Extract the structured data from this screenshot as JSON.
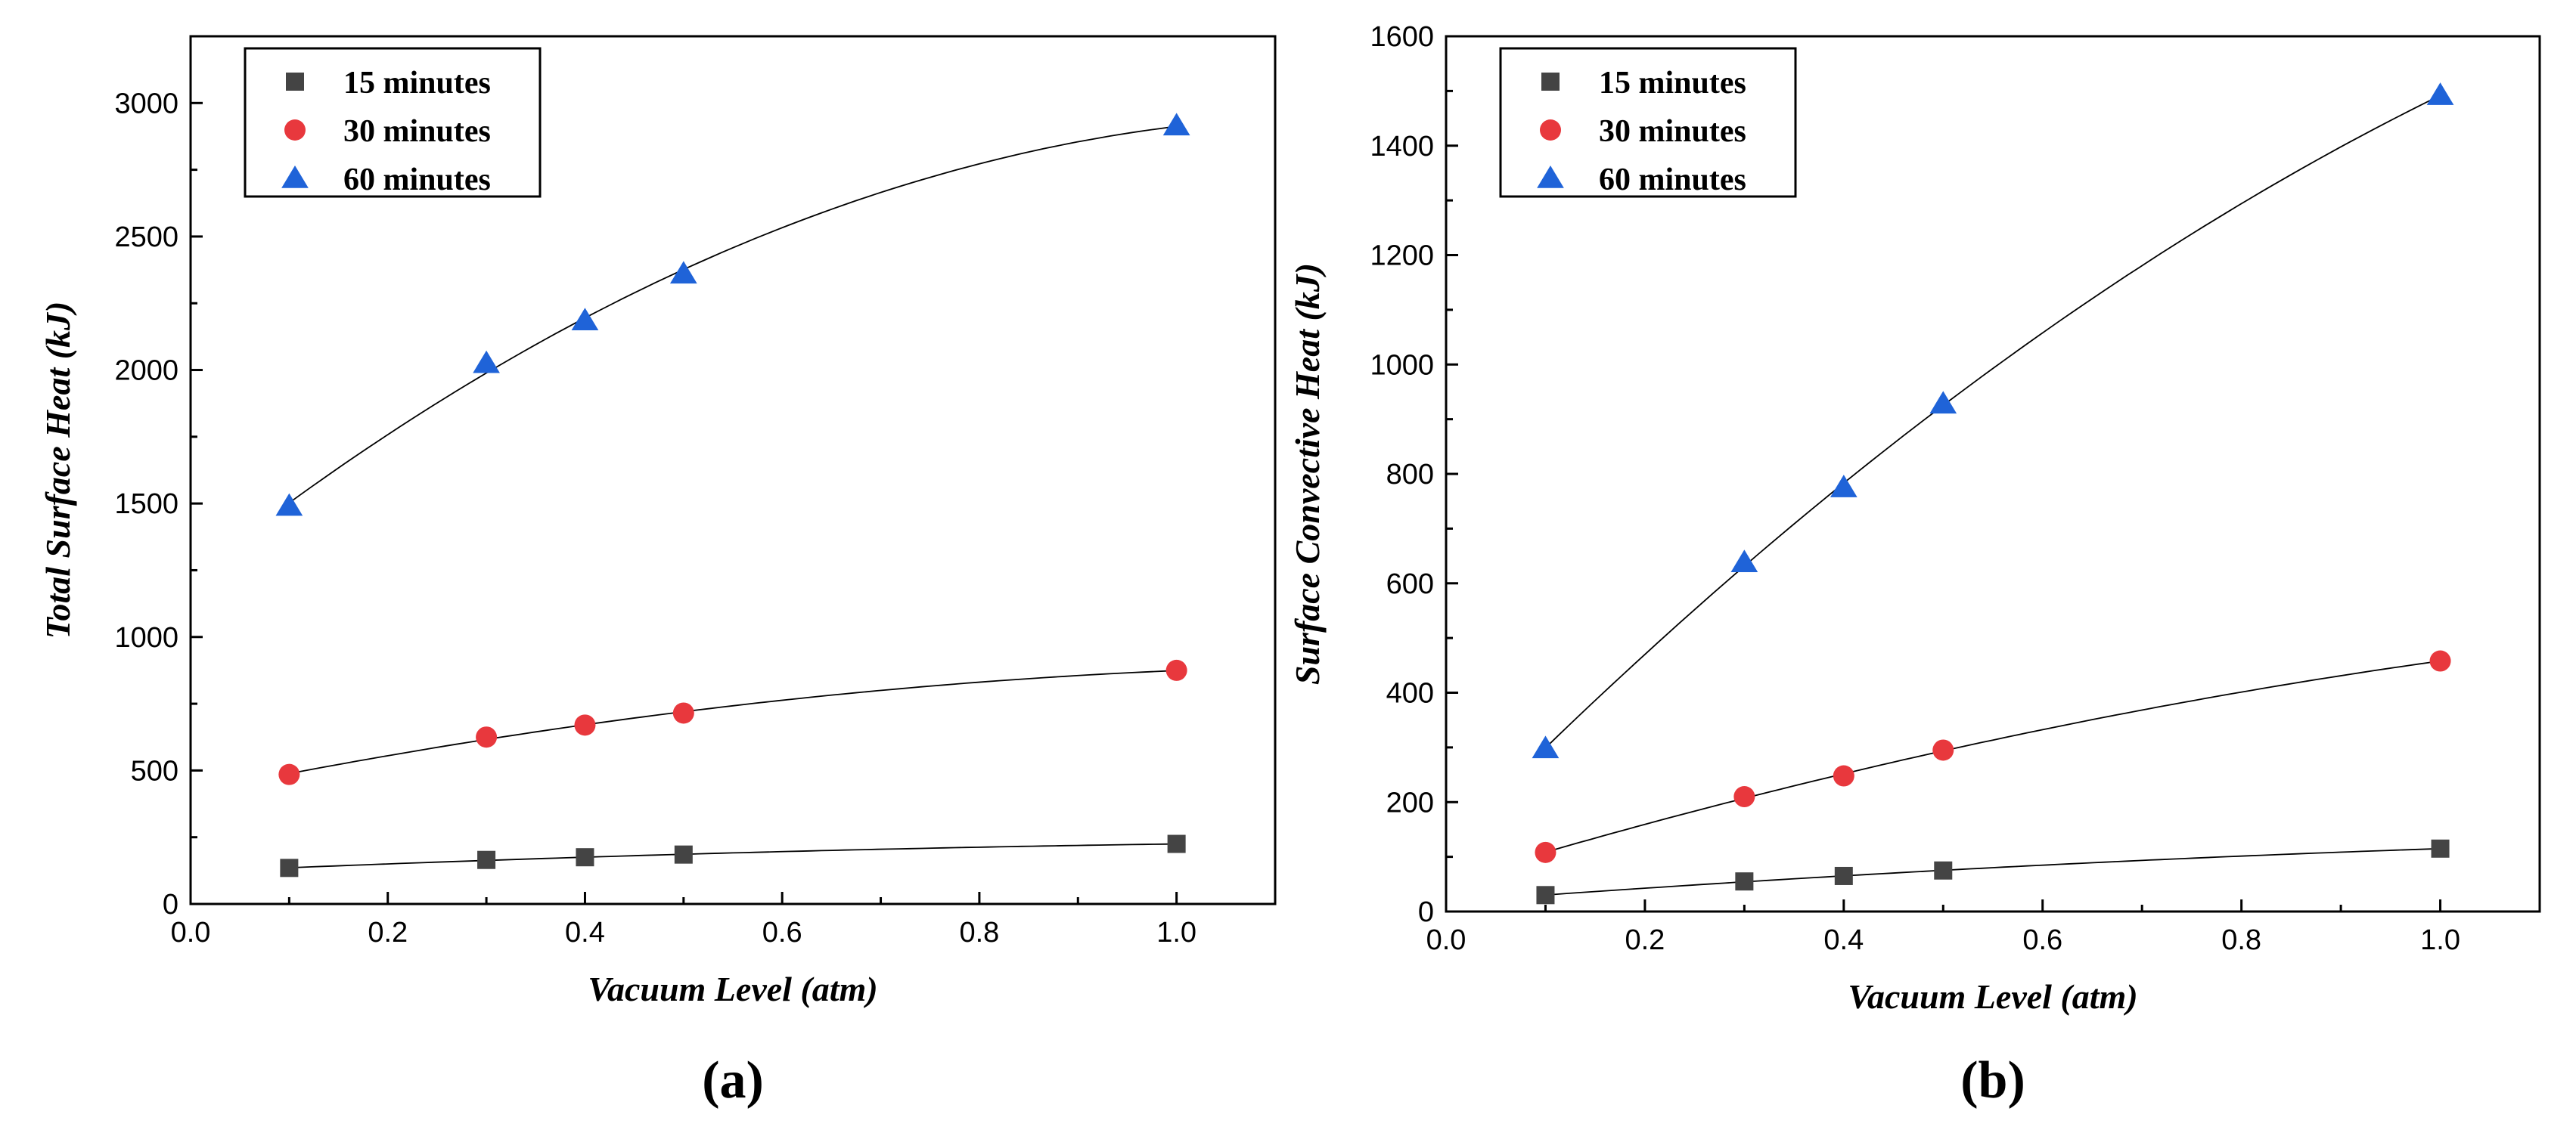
{
  "chart_data": [
    {
      "type": "scatter",
      "title": "",
      "panel_label": "(a)",
      "xlabel": "Vacuum Level (atm)",
      "ylabel": "Total Surface Heat (kJ)",
      "xlim": [
        0.0,
        1.1
      ],
      "ylim": [
        0,
        3250
      ],
      "xticks": [
        0.0,
        0.2,
        0.4,
        0.6,
        0.8,
        1.0
      ],
      "xtick_labels": [
        "0.0",
        "0.2",
        "0.4",
        "0.6",
        "0.8",
        "1.0"
      ],
      "yticks": [
        0,
        500,
        1000,
        1500,
        2000,
        2500,
        3000
      ],
      "ytick_labels": [
        "0",
        "500",
        "1000",
        "1500",
        "2000",
        "2500",
        "3000"
      ],
      "legend_position": "top-left",
      "grid": false,
      "fit_lines": true,
      "x": [
        0.1,
        0.3,
        0.4,
        0.5,
        1.0
      ],
      "series": [
        {
          "name": "15 minutes",
          "marker": "square",
          "color": "#444444",
          "values": [
            135,
            165,
            175,
            185,
            225
          ]
        },
        {
          "name": "30 minutes",
          "marker": "circle",
          "color": "#e8383d",
          "values": [
            485,
            625,
            670,
            715,
            875
          ]
        },
        {
          "name": "60 minutes",
          "marker": "triangle",
          "color": "#1f63d8",
          "values": [
            1490,
            2025,
            2185,
            2360,
            2915
          ]
        }
      ]
    },
    {
      "type": "scatter",
      "title": "",
      "panel_label": "(b)",
      "xlabel": "Vacuum Level (atm)",
      "ylabel": "Surface Convective Heat (kJ)",
      "xlim": [
        0.0,
        1.1
      ],
      "ylim": [
        0,
        1600
      ],
      "xticks": [
        0.0,
        0.2,
        0.4,
        0.6,
        0.8,
        1.0
      ],
      "xtick_labels": [
        "0.0",
        "0.2",
        "0.4",
        "0.6",
        "0.8",
        "1.0"
      ],
      "yticks": [
        0,
        200,
        400,
        600,
        800,
        1000,
        1200,
        1400,
        1600
      ],
      "ytick_labels": [
        "0",
        "200",
        "400",
        "600",
        "800",
        "1000",
        "1200",
        "1400",
        "1600"
      ],
      "legend_position": "top-left",
      "grid": false,
      "fit_lines": true,
      "x": [
        0.1,
        0.3,
        0.4,
        0.5,
        1.0
      ],
      "series": [
        {
          "name": "15 minutes",
          "marker": "square",
          "color": "#444444",
          "values": [
            30,
            55,
            65,
            75,
            115
          ]
        },
        {
          "name": "30 minutes",
          "marker": "circle",
          "color": "#e8383d",
          "values": [
            108,
            210,
            248,
            295,
            458
          ]
        },
        {
          "name": "60 minutes",
          "marker": "triangle",
          "color": "#1f63d8",
          "values": [
            298,
            638,
            775,
            928,
            1492
          ]
        }
      ]
    }
  ]
}
